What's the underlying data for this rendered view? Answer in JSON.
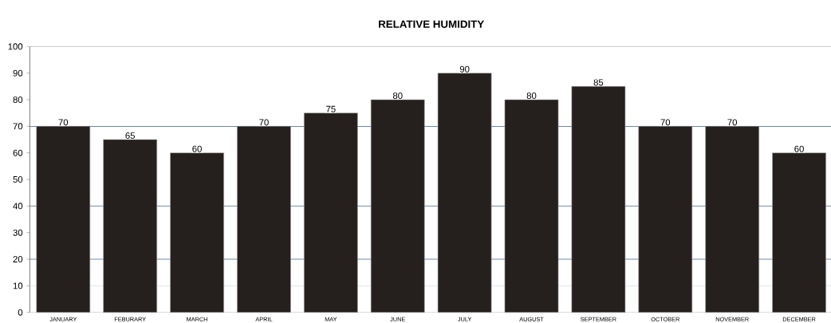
{
  "chart_data": {
    "type": "bar",
    "title": "RELATIVE HUMIDITY",
    "categories": [
      "JANUARY",
      "FEBURARY",
      "MARCH",
      "APRIL",
      "MAY",
      "JUNE",
      "JULY",
      "AUGUST",
      "SEPTEMBER",
      "OCTOBER",
      "NOVEMBER",
      "DECEMBER"
    ],
    "values": [
      70,
      65,
      60,
      70,
      75,
      80,
      90,
      80,
      85,
      70,
      70,
      60
    ],
    "color": "#25201e",
    "ylim": [
      0,
      100
    ],
    "yticks": [
      0,
      10,
      20,
      30,
      40,
      50,
      60,
      70,
      80,
      90,
      100
    ],
    "data_labels": true,
    "grid": false,
    "ref_lines": [
      {
        "axis": "y",
        "value": 10,
        "color": "#d5dde6"
      },
      {
        "axis": "y",
        "value": 20,
        "color": "#4f6f93"
      },
      {
        "axis": "y",
        "value": 40,
        "color": "#4f6f93"
      },
      {
        "axis": "y",
        "value": 70,
        "color": "#1f4e79"
      }
    ]
  }
}
